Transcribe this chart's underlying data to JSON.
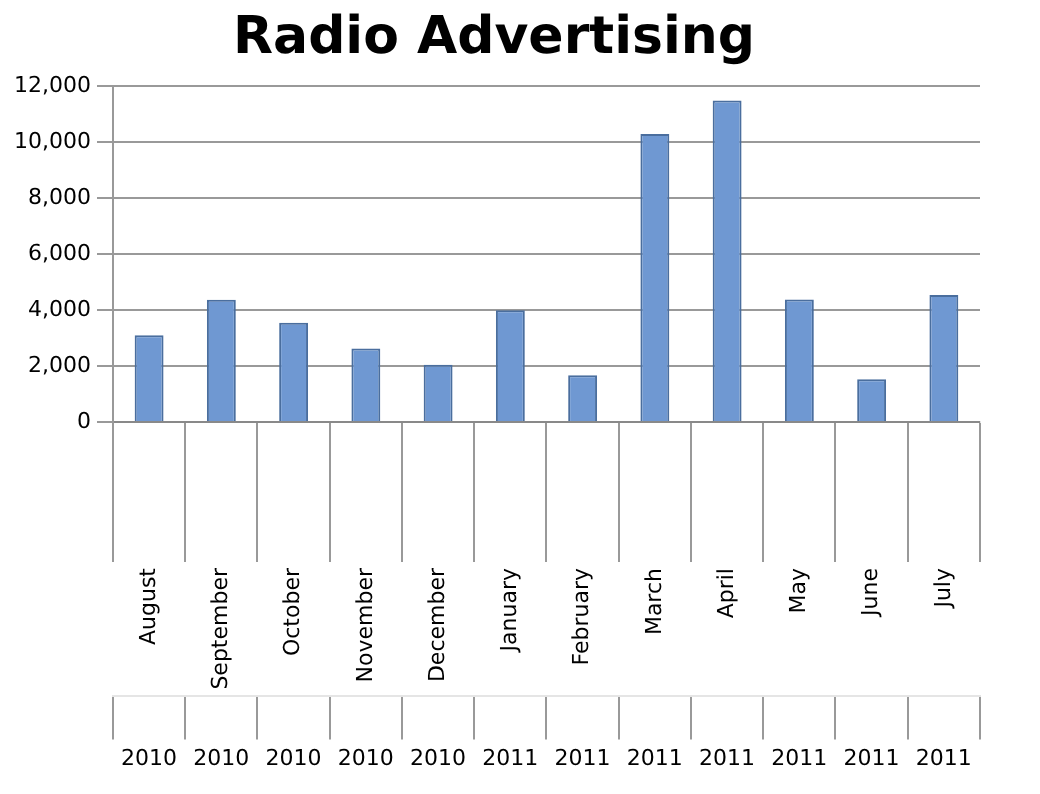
{
  "chart_data": {
    "type": "bar",
    "title": "Radio Advertising",
    "categories": [
      "August 2010",
      "September 2010",
      "October 2010",
      "November 2010",
      "December 2010",
      "January 2011",
      "February 2011",
      "March 2011",
      "April 2011",
      "May 2011",
      "June 2011",
      "July 2011"
    ],
    "values": [
      3100,
      4370,
      3550,
      2630,
      2050,
      4000,
      1670,
      10300,
      11500,
      4380,
      1530,
      4540
    ],
    "color": "#6f98d2",
    "ylim": [
      0,
      12000
    ],
    "yticks": [
      0,
      {
        "value": 2000,
        "label": "2,000"
      },
      {
        "value": 4000,
        "label": "4,000"
      },
      {
        "value": 6000,
        "label": "6,000"
      },
      {
        "value": 8000,
        "label": "8,000"
      },
      {
        "value": 10000,
        "label": "10,000"
      },
      {
        "value": 12000,
        "label": "12,000"
      }
    ],
    "grid": "y",
    "legend": false
  }
}
